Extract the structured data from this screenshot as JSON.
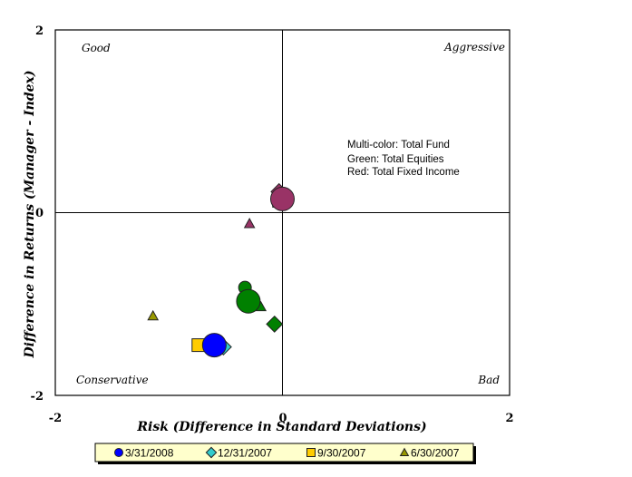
{
  "chart_data": {
    "type": "scatter",
    "xlabel": "Risk (Difference in Standard Deviations)",
    "ylabel": "Difference in Returns (Manager - Index)",
    "xlim": [
      -2,
      2
    ],
    "ylim": [
      -2,
      2
    ],
    "x_ticks": [
      "-2",
      "0",
      "2"
    ],
    "y_ticks": [
      "2",
      "0",
      "-2"
    ],
    "grid": false,
    "quadrant_labels": {
      "top_left": "Good",
      "top_right": "Aggressive",
      "bottom_left": "Conservative",
      "bottom_right": "Bad"
    },
    "annotation": [
      "Multi-color: Total Fund",
      "Green: Total Equities",
      "Red: Total Fixed Income"
    ],
    "legend_position": "bottom",
    "colors": {
      "total_fund_3_31_2008": "#0000ff",
      "total_fund_12_31_2007": "#33cccc",
      "total_fund_9_30_2007": "#ffcc00",
      "total_fund_6_30_2007": "#999900",
      "total_equities": "#008000",
      "total_fixed_income": "#993366"
    },
    "series": [
      {
        "name": "3/31/2008",
        "marker": "circle",
        "legend_color": "#0000ff",
        "points": [
          {
            "x": -0.6,
            "y": -1.45,
            "group": "Total Fund",
            "color": "#0000ff",
            "big": true
          },
          {
            "x": -0.3,
            "y": -0.97,
            "group": "Total Equities",
            "color": "#008000",
            "big": true
          },
          {
            "x": 0.0,
            "y": 0.15,
            "group": "Total Fixed Income",
            "color": "#993366",
            "big": true
          }
        ]
      },
      {
        "name": "12/31/2007",
        "marker": "diamond",
        "legend_color": "#33cccc",
        "points": [
          {
            "x": -0.52,
            "y": -1.47,
            "group": "Total Fund",
            "color": "#33cccc"
          },
          {
            "x": -0.07,
            "y": -1.22,
            "group": "Total Equities",
            "color": "#008000"
          },
          {
            "x": -0.03,
            "y": 0.23,
            "group": "Total Fixed Income",
            "color": "#993366"
          }
        ]
      },
      {
        "name": "9/30/2007",
        "marker": "square",
        "legend_color": "#ffcc00",
        "points": [
          {
            "x": -0.74,
            "y": -1.45,
            "group": "Total Fund",
            "color": "#ffcc00"
          },
          {
            "x": -0.33,
            "y": -0.82,
            "group": "Total Equities",
            "color": "#008000",
            "shape_override": "circle"
          },
          {
            "x": -0.03,
            "y": 0.13,
            "group": "Total Fixed Income",
            "color": "#993366"
          }
        ]
      },
      {
        "name": "6/30/2007",
        "marker": "triangle",
        "legend_color": "#999900",
        "points": [
          {
            "x": -1.14,
            "y": -1.13,
            "group": "Total Fund",
            "color": "#999900"
          },
          {
            "x": -0.19,
            "y": -1.03,
            "group": "Total Equities",
            "color": "#008000"
          },
          {
            "x": -0.29,
            "y": -0.12,
            "group": "Total Fixed Income",
            "color": "#993366"
          }
        ]
      }
    ]
  }
}
